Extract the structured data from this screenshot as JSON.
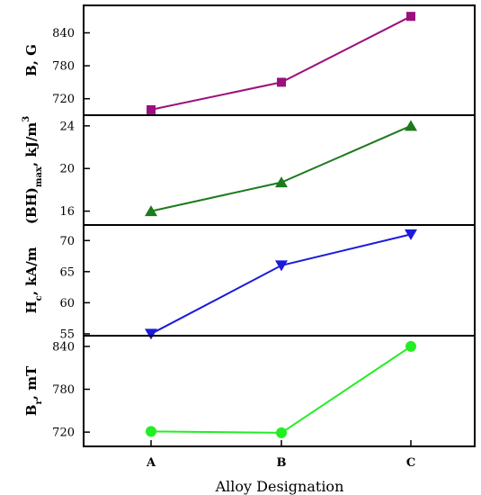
{
  "chart_data": {
    "type": "line",
    "x_categories": [
      "A",
      "B",
      "C"
    ],
    "xlabel": "Alloy Designation",
    "panels": [
      {
        "id": "B",
        "ylabel": {
          "main": "B, G",
          "sub": "",
          "sup": ""
        },
        "ylim": [
          690,
          890
        ],
        "yticks": [
          720,
          780,
          840
        ],
        "values": [
          700,
          750,
          870
        ],
        "color": "#9b0f7e",
        "marker": "square"
      },
      {
        "id": "BHmax",
        "ylabel": {
          "main": "(BH)",
          "sub": "max",
          "rest": ", kJ/m",
          "sup": "3"
        },
        "ylim": [
          14.7,
          25
        ],
        "yticks": [
          16,
          20,
          24
        ],
        "values": [
          16,
          18.7,
          24
        ],
        "color": "#1e7a1e",
        "marker": "triangle-up"
      },
      {
        "id": "Hc",
        "ylabel": {
          "main": "H",
          "sub": "c",
          "rest": ", kA/m",
          "sup": ""
        },
        "ylim": [
          54.7,
          72.5
        ],
        "yticks": [
          55,
          60,
          65,
          70
        ],
        "values": [
          55,
          66,
          71
        ],
        "color": "#1a1add",
        "marker": "triangle-down"
      },
      {
        "id": "Br",
        "ylabel": {
          "main": "B",
          "sub": "r",
          "rest": ", mT",
          "sup": ""
        },
        "ylim": [
          700,
          855
        ],
        "yticks": [
          720,
          780,
          840
        ],
        "values": [
          721,
          719,
          840
        ],
        "color": "#22ee22",
        "marker": "circle"
      }
    ],
    "grid": false,
    "legend": "none"
  }
}
